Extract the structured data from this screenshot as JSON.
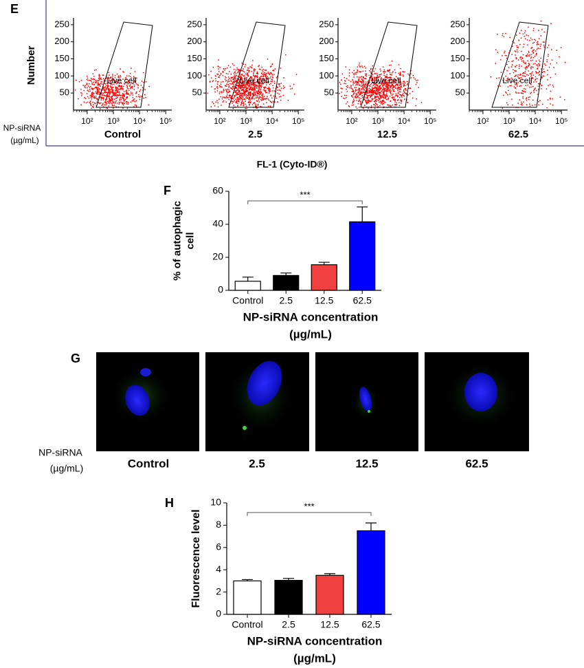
{
  "panel_e": {
    "label": "E",
    "y_label": "Number",
    "x_label": "FL-1 (Cyto-ID®)",
    "group_label": [
      "NP-siRNA",
      "(µg/mL)"
    ]
  },
  "panel_g": {
    "label": "G",
    "group_label": [
      "NP-siRNA",
      "(µg/mL)"
    ],
    "images": [
      "Control",
      "2.5",
      "12.5",
      "62.5"
    ]
  },
  "chart_data": [
    {
      "type": "scatter",
      "title": "Control",
      "annotation": "Live cell",
      "color": "#ff0000",
      "xscale": "log",
      "xlim": [
        30,
        170000
      ],
      "xticks": [
        {
          "value": 100,
          "label": "10²"
        },
        {
          "value": 1000,
          "label": "10³"
        },
        {
          "value": 10000,
          "label": "10⁴"
        },
        {
          "value": 100000,
          "label": "10⁵"
        }
      ],
      "ylim": [
        0,
        270
      ],
      "yticks": [
        50,
        100,
        150,
        200,
        250
      ]
    },
    {
      "type": "scatter",
      "title": "2.5",
      "annotation": "Live cell",
      "color": "#ff0000",
      "xscale": "log",
      "xlim": [
        30,
        170000
      ],
      "xticks": [
        {
          "value": 100,
          "label": "10²"
        },
        {
          "value": 1000,
          "label": "10³"
        },
        {
          "value": 10000,
          "label": "10⁴"
        },
        {
          "value": 100000,
          "label": "10⁵"
        }
      ],
      "ylim": [
        0,
        270
      ],
      "yticks": [
        50,
        100,
        150,
        200,
        250
      ]
    },
    {
      "type": "scatter",
      "title": "12.5",
      "annotation": "Live cell",
      "color": "#ff0000",
      "xscale": "log",
      "xlim": [
        30,
        170000
      ],
      "xticks": [
        {
          "value": 100,
          "label": "10²"
        },
        {
          "value": 1000,
          "label": "10³"
        },
        {
          "value": 10000,
          "label": "10⁴"
        },
        {
          "value": 100000,
          "label": "10⁵"
        }
      ],
      "ylim": [
        0,
        270
      ],
      "yticks": [
        50,
        100,
        150,
        200,
        250
      ]
    },
    {
      "type": "scatter",
      "title": "62.5",
      "annotation": "Live cell",
      "color": "#ff0000",
      "xscale": "log",
      "xlim": [
        30,
        170000
      ],
      "xticks": [
        {
          "value": 100,
          "label": "10²"
        },
        {
          "value": 1000,
          "label": "10³"
        },
        {
          "value": 10000,
          "label": "10⁴"
        },
        {
          "value": 100000,
          "label": "10⁵"
        }
      ],
      "ylim": [
        0,
        270
      ],
      "yticks": [
        50,
        100,
        150,
        200,
        250
      ]
    },
    {
      "type": "bar",
      "label": "F",
      "annotation": "***",
      "categories": [
        "Control",
        "2.5",
        "12.5",
        "62.5"
      ],
      "values": [
        5.5,
        9,
        15.5,
        41.5
      ],
      "errors": [
        2.5,
        1.5,
        1.5,
        9
      ],
      "colors": [
        "#ffffff",
        "#000000",
        "#f04040",
        "#0000ff"
      ],
      "ylim": [
        0,
        60
      ],
      "yticks": [
        0,
        20,
        40,
        60
      ],
      "ylabel": [
        "% of autophagic",
        "cell"
      ],
      "xlabel": [
        "NP-siRNA concentration",
        "(µg/mL)"
      ]
    },
    {
      "type": "bar",
      "label": "H",
      "annotation": "***",
      "categories": [
        "Control",
        "2.5",
        "12.5",
        "62.5"
      ],
      "values": [
        3,
        3.05,
        3.5,
        7.5
      ],
      "errors": [
        0.12,
        0.18,
        0.15,
        0.7
      ],
      "colors": [
        "#ffffff",
        "#000000",
        "#f04040",
        "#0000ff"
      ],
      "ylim": [
        0,
        10
      ],
      "yticks": [
        0,
        2,
        4,
        6,
        8,
        10
      ],
      "ylabel": [
        "Fluorescence level"
      ],
      "xlabel": [
        "NP-siRNA concentration",
        "(µg/mL)"
      ]
    }
  ]
}
